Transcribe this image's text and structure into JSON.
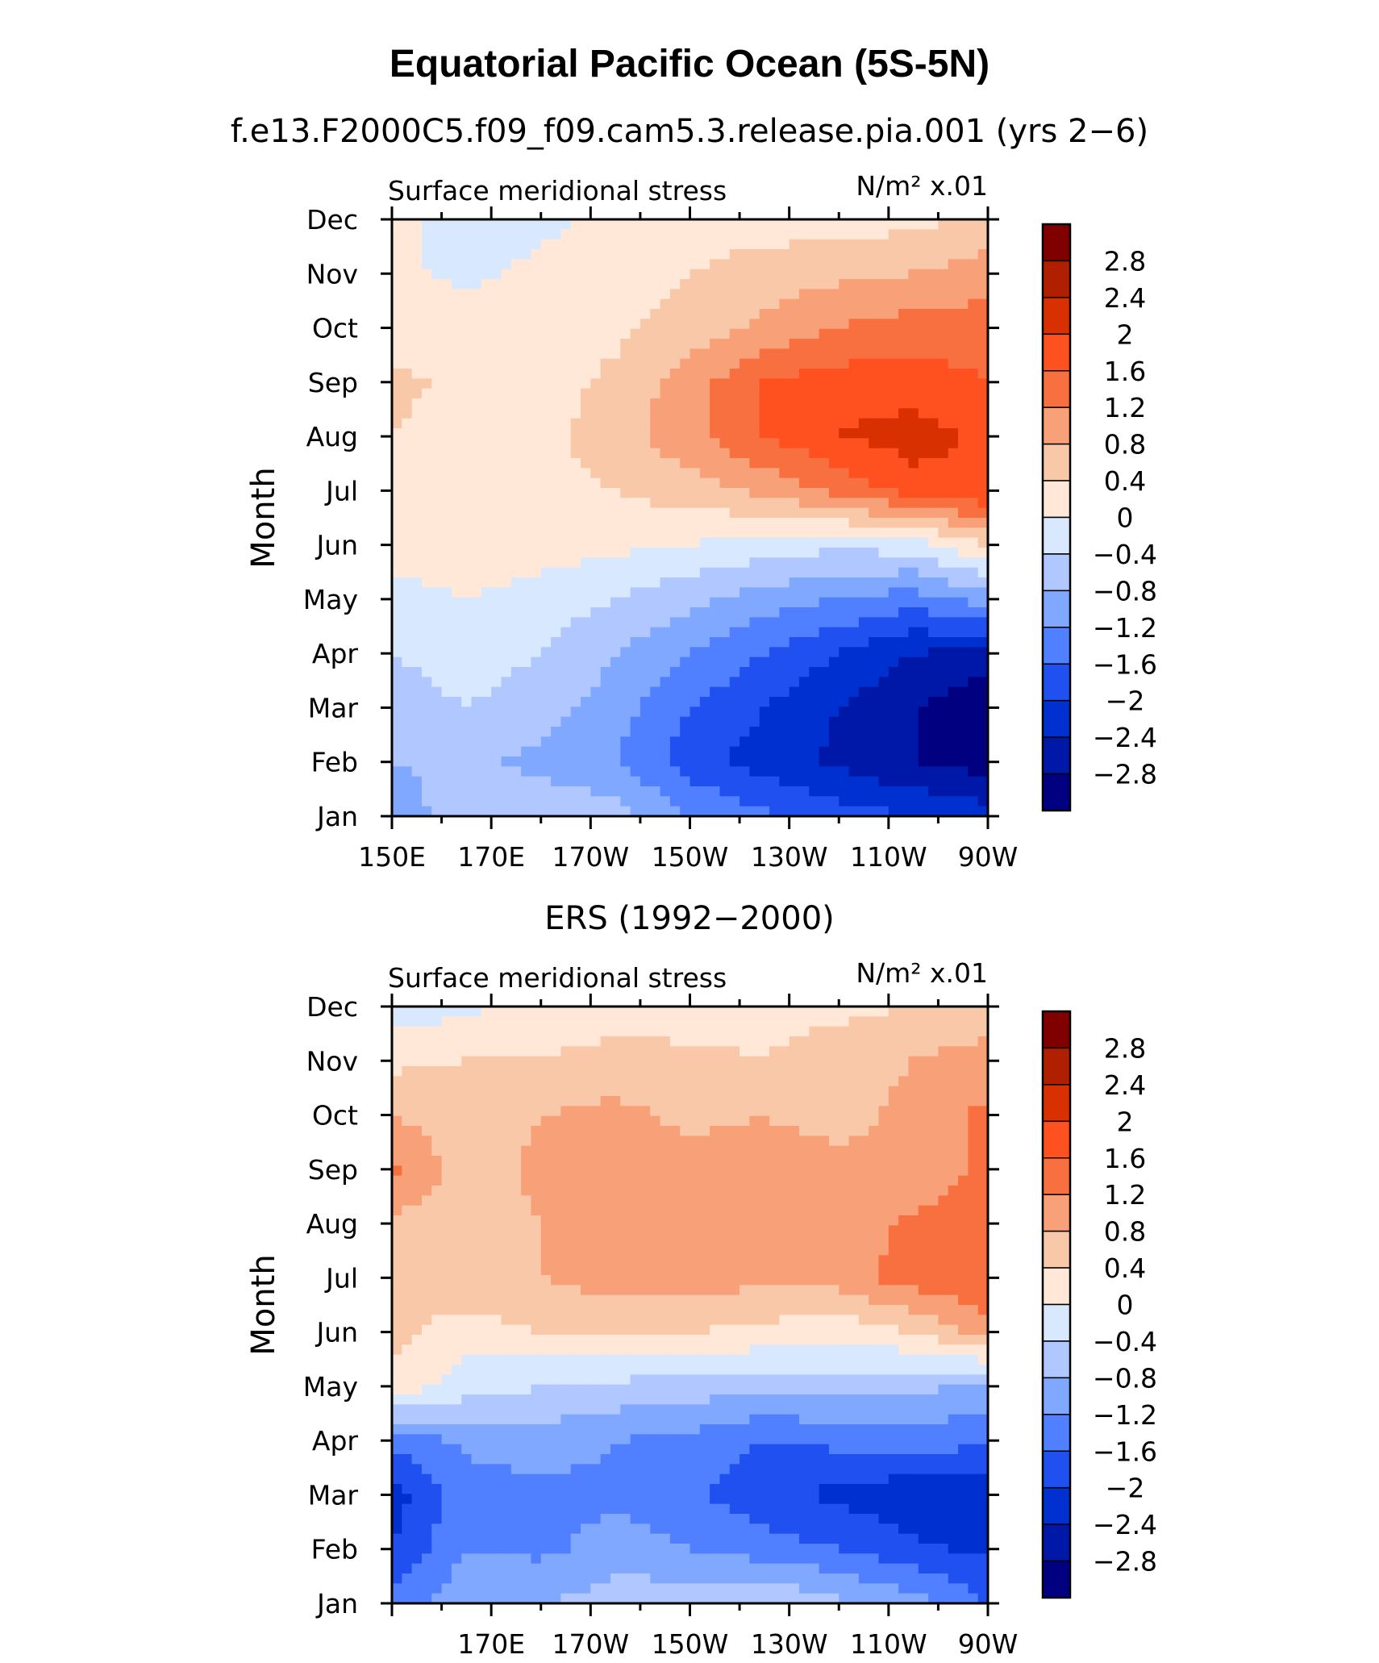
{
  "title": "Equatorial Pacific Ocean (5S-5N)",
  "colorbar": {
    "levels": [
      "2.8",
      "2.4",
      "2",
      "1.6",
      "1.2",
      "0.8",
      "0.4",
      "0",
      "−0.4",
      "−0.8",
      "−1.2",
      "−1.6",
      "−2",
      "−2.4",
      "−2.8"
    ],
    "colors": [
      "#800000",
      "#B02000",
      "#D83000",
      "#FF5020",
      "#F87040",
      "#F8A078",
      "#F8C8A8",
      "#FFE8D8",
      "#D8E8FF",
      "#B0C8FF",
      "#80A8FF",
      "#5080FF",
      "#2050F0",
      "#0030D0",
      "#0018A8",
      "#000080"
    ]
  },
  "chart_data": [
    {
      "type": "heatmap",
      "subtitle": "f.e13.F2000C5.f09_f09.cam5.3.release.pia.001 (yrs 2−6)",
      "field": "Surface meridional stress",
      "units": "N/m² x.01",
      "ylabel": "Month",
      "xlabel": "",
      "y_categories": [
        "Jan",
        "Feb",
        "Mar",
        "Apr",
        "May",
        "Jun",
        "Jul",
        "Aug",
        "Sep",
        "Oct",
        "Nov",
        "Dec"
      ],
      "x_ticks": [
        "150E",
        "170E",
        "170W",
        "150W",
        "130W",
        "110W",
        "90W"
      ],
      "x": [
        150,
        165,
        180,
        195,
        210,
        225,
        240,
        255,
        270
      ],
      "values": [
        [
          -1.0,
          -0.6,
          -0.5,
          -0.6,
          -1.2,
          -1.5,
          -1.8,
          -2.0,
          -2.2
        ],
        [
          -0.8,
          -0.7,
          -0.9,
          -1.2,
          -1.8,
          -2.2,
          -2.5,
          -2.8,
          -3.0
        ],
        [
          -0.6,
          -0.4,
          -0.6,
          -1.0,
          -1.6,
          -2.0,
          -2.4,
          -2.8,
          -3.1
        ],
        [
          -0.4,
          -0.2,
          -0.4,
          -0.8,
          -1.2,
          -1.6,
          -2.0,
          -2.4,
          -2.6
        ],
        [
          -0.2,
          0.0,
          -0.2,
          -0.4,
          -0.7,
          -1.0,
          -1.2,
          -1.4,
          -1.0
        ],
        [
          0.2,
          0.3,
          0.2,
          0.1,
          0.0,
          -0.2,
          -0.3,
          -0.2,
          0.4
        ],
        [
          0.4,
          0.3,
          0.3,
          0.4,
          0.6,
          0.9,
          1.3,
          1.8,
          2.0
        ],
        [
          0.4,
          0.2,
          0.3,
          0.6,
          1.1,
          1.6,
          2.0,
          2.2,
          1.9
        ],
        [
          0.5,
          0.3,
          0.2,
          0.5,
          1.0,
          1.6,
          1.8,
          1.8,
          1.6
        ],
        [
          0.2,
          0.2,
          0.2,
          0.3,
          0.6,
          0.9,
          1.2,
          1.4,
          1.4
        ],
        [
          0.1,
          -0.1,
          0.1,
          0.2,
          0.4,
          0.6,
          0.7,
          0.8,
          1.0
        ],
        [
          0.1,
          -0.2,
          -0.1,
          0.1,
          0.2,
          0.2,
          0.2,
          0.3,
          0.5
        ]
      ],
      "zlim": [
        -3.2,
        3.2
      ]
    },
    {
      "type": "heatmap",
      "subtitle": "ERS (1992−2000)",
      "field": "Surface meridional stress",
      "units": "N/m² x.01",
      "ylabel": "Month",
      "xlabel": "",
      "y_categories": [
        "Jan",
        "Feb",
        "Mar",
        "Apr",
        "May",
        "Jun",
        "Jul",
        "Aug",
        "Sep",
        "Oct",
        "Nov",
        "Dec"
      ],
      "x_ticks": [
        "170E",
        "170W",
        "150W",
        "130W",
        "110W",
        "90W"
      ],
      "x": [
        150,
        165,
        180,
        195,
        210,
        225,
        240,
        255,
        270
      ],
      "values": [
        [
          -1.4,
          -0.9,
          -0.8,
          -0.6,
          -0.5,
          -0.4,
          -0.7,
          -1.0,
          -1.6
        ],
        [
          -2.0,
          -1.2,
          -1.3,
          -1.0,
          -1.2,
          -1.4,
          -1.6,
          -1.9,
          -2.1
        ],
        [
          -2.2,
          -1.4,
          -1.3,
          -1.3,
          -1.5,
          -1.9,
          -2.1,
          -2.3,
          -2.4
        ],
        [
          -1.5,
          -1.1,
          -1.0,
          -1.2,
          -1.3,
          -1.6,
          -1.5,
          -1.4,
          -1.5
        ],
        [
          0.3,
          -0.2,
          -0.4,
          -0.5,
          -0.6,
          -0.7,
          -0.6,
          -0.7,
          -0.9
        ],
        [
          0.5,
          0.2,
          0.4,
          0.5,
          0.4,
          0.3,
          0.1,
          0.4,
          1.0
        ],
        [
          0.6,
          0.7,
          0.8,
          1.0,
          1.0,
          0.9,
          1.0,
          1.4,
          1.6
        ],
        [
          0.7,
          0.6,
          0.8,
          1.1,
          1.0,
          1.0,
          0.9,
          1.3,
          1.6
        ],
        [
          1.3,
          0.6,
          0.9,
          1.1,
          1.0,
          0.9,
          0.9,
          0.8,
          1.3
        ],
        [
          0.8,
          0.5,
          0.8,
          0.9,
          0.7,
          0.8,
          0.7,
          0.9,
          1.3
        ],
        [
          0.3,
          0.4,
          0.4,
          0.6,
          0.5,
          0.4,
          0.6,
          0.8,
          1.0
        ],
        [
          -0.2,
          -0.1,
          0.2,
          0.1,
          0.2,
          0.3,
          0.3,
          0.4,
          0.5
        ]
      ],
      "zlim": [
        -3.2,
        3.2
      ]
    }
  ]
}
